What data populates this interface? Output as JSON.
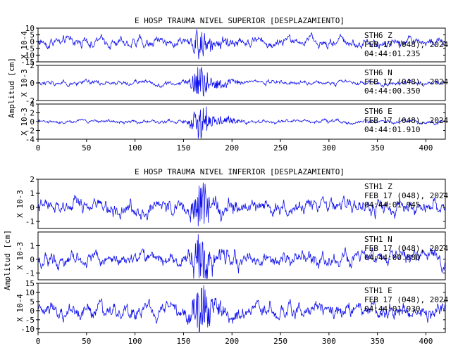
{
  "colors": {
    "trace": "#1010ee",
    "axis": "#000000",
    "background": "#ffffff"
  },
  "chart_data": [
    {
      "type": "line",
      "title": "E HOSP TRAUMA NIVEL SUPERIOR [DESPLAZAMIENTO]",
      "ylabel": "Amplitud [cm]",
      "xlim": [
        0,
        420
      ],
      "x_ticks": [
        0,
        50,
        100,
        150,
        200,
        250,
        300,
        350,
        400
      ],
      "panels": [
        {
          "channel": "STH6   Z",
          "date": "FEB 17 (048), 2024",
          "time": "04:44:01.235",
          "scale": "X 10-4",
          "ylim": [
            -15,
            10
          ],
          "y_ticks": [
            10,
            5,
            0,
            -5,
            -10,
            -15
          ],
          "peak": 12,
          "base_amp": 4
        },
        {
          "channel": "STH6   N",
          "date": "FEB 17 (048), 2024",
          "time": "04:44:00.350",
          "scale": "X 10-3",
          "ylim": [
            -2,
            2
          ],
          "y_ticks": [
            2,
            0,
            -2
          ],
          "peak": 2.2,
          "base_amp": 0.3
        },
        {
          "channel": "STH6   E",
          "date": "FEB 17 (048), 2024",
          "time": "04:44:01.910",
          "scale": "X 10-3",
          "ylim": [
            -4,
            4
          ],
          "y_ticks": [
            4,
            2,
            0,
            -2,
            -4
          ],
          "peak": 5,
          "base_amp": 0.5
        }
      ]
    },
    {
      "type": "line",
      "title": "E HOSP TRAUMA NIVEL INFERIOR [DESPLAZAMIENTO]",
      "ylabel": "Amplitud [cm]",
      "xlim": [
        0,
        420
      ],
      "x_ticks": [
        0,
        50,
        100,
        150,
        200,
        250,
        300,
        350,
        400
      ],
      "panels": [
        {
          "channel": "STH1   Z",
          "date": "FEB 17 (048), 2024",
          "time": "04:44:01.945",
          "scale": "X 10-3",
          "ylim": [
            -1.5,
            2
          ],
          "y_ticks": [
            2,
            1,
            0,
            -1
          ],
          "peak": 1.9,
          "base_amp": 0.6
        },
        {
          "channel": "STH1   N",
          "date": "FEB 17 (048), 2024",
          "time": "04:44:00.880",
          "scale": "X 10-3",
          "ylim": [
            -1.5,
            2
          ],
          "y_ticks": [
            1,
            0,
            -1
          ],
          "peak": 1.8,
          "base_amp": 0.6
        },
        {
          "channel": "STH1   E",
          "date": "FEB 17 (048), 2024",
          "time": "04:44:01.930",
          "scale": "X 10-4",
          "ylim": [
            -12,
            15
          ],
          "y_ticks": [
            15,
            10,
            5,
            0,
            -5,
            -10
          ],
          "peak": 16,
          "base_amp": 5
        }
      ]
    }
  ]
}
